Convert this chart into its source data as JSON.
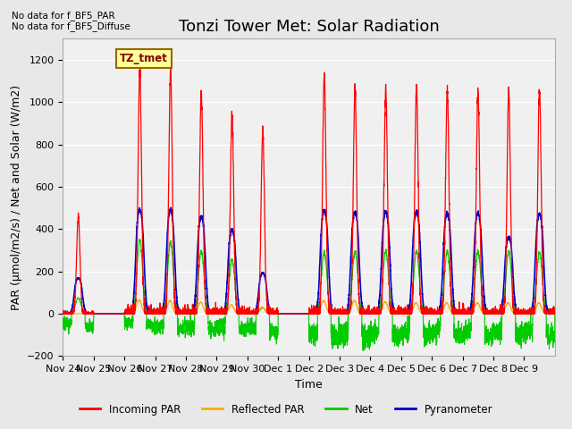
{
  "title": "Tonzi Tower Met: Solar Radiation",
  "ylabel": "PAR (μmol/m2/s) / Net and Solar (W/m2)",
  "xlabel": "Time",
  "xlabels": [
    "Nov 24",
    "Nov 25",
    "Nov 26",
    "Nov 27",
    "Nov 28",
    "Nov 29",
    "Nov 30",
    "Dec 1",
    "Dec 2",
    "Dec 3",
    "Dec 4",
    "Dec 5",
    "Dec 6",
    "Dec 7",
    "Dec 8",
    "Dec 9"
  ],
  "ylim": [
    -200,
    1300
  ],
  "yticks": [
    -200,
    0,
    200,
    400,
    600,
    800,
    1000,
    1200
  ],
  "note1": "No data for f_BF5_PAR",
  "note2": "No data for f_BF5_Diffuse",
  "legend_label": "TZ_tmet",
  "legend_entries": [
    "Incoming PAR",
    "Reflected PAR",
    "Net",
    "Pyranometer"
  ],
  "legend_colors": [
    "#ff0000",
    "#ffaa00",
    "#00cc00",
    "#0000cc"
  ],
  "background_color": "#e8e8e8",
  "plot_bg_color": "#f0f0f0",
  "grid_color": "#ffffff",
  "n_days": 16,
  "peak_heights_red": [
    460,
    0,
    1150,
    1160,
    1050,
    940,
    860,
    0,
    1125,
    1070,
    1060,
    1070,
    1060,
    1050,
    1050,
    1060
  ],
  "peak_heights_blue": [
    175,
    0,
    510,
    510,
    475,
    410,
    200,
    0,
    505,
    495,
    500,
    500,
    490,
    490,
    375,
    490
  ],
  "peak_heights_green_pos": [
    75,
    0,
    350,
    340,
    295,
    255,
    28,
    0,
    290,
    295,
    295,
    295,
    295,
    295,
    295,
    290
  ],
  "peak_heights_green_neg": [
    -60,
    0,
    -60,
    -75,
    -80,
    -80,
    -80,
    0,
    -115,
    -115,
    -100,
    -100,
    -100,
    -100,
    -100,
    -100
  ],
  "peak_heights_orange": [
    0,
    0,
    65,
    62,
    55,
    42,
    32,
    0,
    62,
    62,
    57,
    52,
    52,
    52,
    52,
    52
  ],
  "title_fontsize": 13,
  "axis_fontsize": 9,
  "tick_fontsize": 8
}
